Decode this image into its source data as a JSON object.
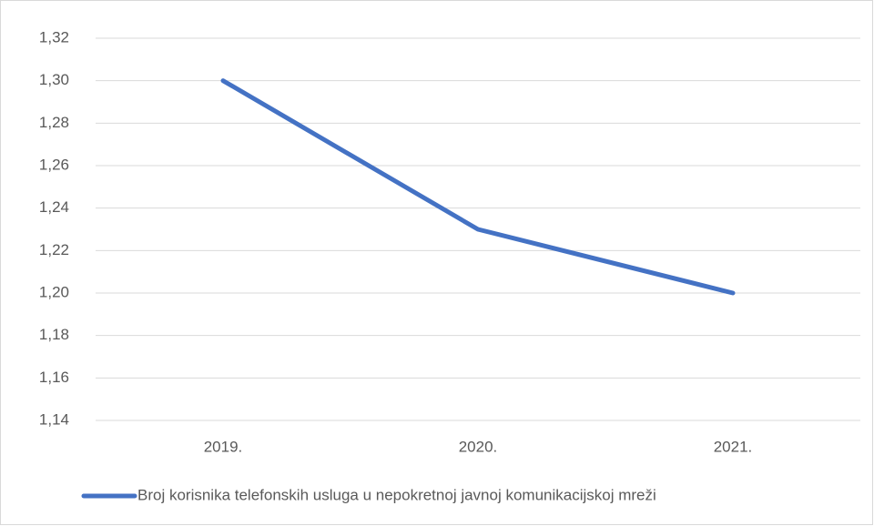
{
  "chart_data": {
    "type": "line",
    "categories": [
      "2019.",
      "2020.",
      "2021."
    ],
    "series": [
      {
        "name": "Broj korisnika telefonskih usluga u nepokretnoj javnoj komunikacijskoj mreži",
        "color": "#4472c4",
        "values": [
          1.3,
          1.23,
          1.2
        ]
      }
    ],
    "ylim": [
      1.14,
      1.32
    ],
    "yticks": [
      {
        "value": 1.14,
        "label": "1,14"
      },
      {
        "value": 1.16,
        "label": "1,16"
      },
      {
        "value": 1.18,
        "label": "1,18"
      },
      {
        "value": 1.2,
        "label": "1,20"
      },
      {
        "value": 1.22,
        "label": "1,22"
      },
      {
        "value": 1.24,
        "label": "1,24"
      },
      {
        "value": 1.26,
        "label": "1,26"
      },
      {
        "value": 1.28,
        "label": "1,28"
      },
      {
        "value": 1.3,
        "label": "1,30"
      },
      {
        "value": 1.32,
        "label": "1,32"
      }
    ],
    "grid": true,
    "legend": "bottom"
  }
}
